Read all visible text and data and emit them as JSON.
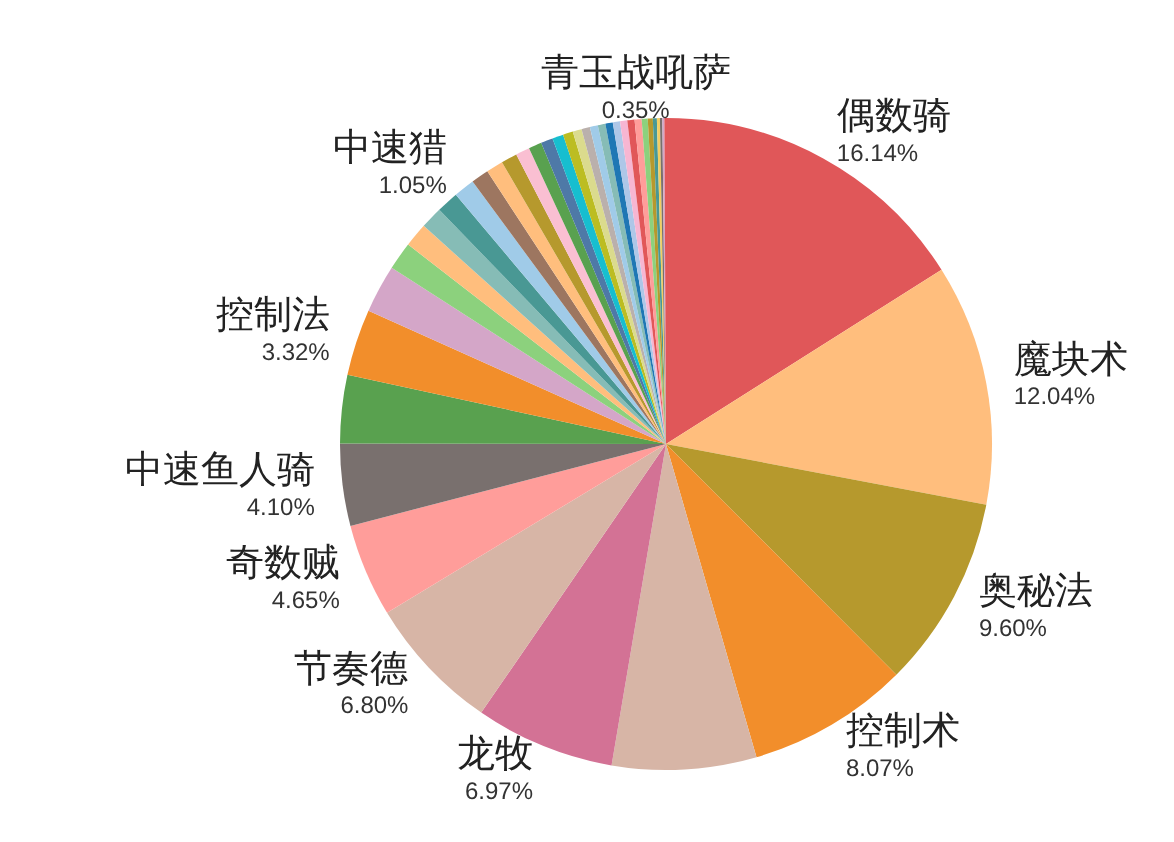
{
  "chart_data": {
    "type": "pie",
    "categories": [
      "偶数骑",
      "魔块术",
      "奥秘法",
      "控制术",
      null,
      "龙牧",
      "节奏德",
      "奇数贼",
      "中速鱼人骑",
      null,
      "控制法",
      null,
      null,
      null,
      null,
      null,
      "中速猎",
      null,
      null,
      null,
      null,
      null,
      null,
      null,
      null,
      null,
      null,
      null,
      null,
      null,
      null,
      null,
      null,
      "青玉战吼萨",
      null,
      null,
      null,
      null,
      null,
      null,
      null
    ],
    "values": [
      16.14,
      12.04,
      9.6,
      8.07,
      7.2,
      6.97,
      6.8,
      4.65,
      4.1,
      3.4,
      3.32,
      2.4,
      1.4,
      1.2,
      1.1,
      1.1,
      1.05,
      0.88,
      0.85,
      0.8,
      0.7,
      0.65,
      0.6,
      0.55,
      0.5,
      0.45,
      0.42,
      0.4,
      0.38,
      0.37,
      0.36,
      0.36,
      0.36,
      0.35,
      0.3,
      0.25,
      0.2,
      0.15,
      0.12,
      0.1,
      0.08
    ],
    "value_labels": [
      "16.14%",
      "12.04%",
      "9.60%",
      "8.07%",
      null,
      "6.97%",
      "6.80%",
      "4.65%",
      "4.10%",
      null,
      "3.32%",
      null,
      null,
      null,
      null,
      null,
      "1.05%",
      null,
      null,
      null,
      null,
      null,
      null,
      null,
      null,
      null,
      null,
      null,
      null,
      null,
      null,
      null,
      null,
      "0.35%",
      null,
      null,
      null,
      null,
      null,
      null,
      null
    ],
    "colors": [
      "#e05759",
      "#ffbe7d",
      "#b6992d",
      "#f28e2b",
      "#d7b5a6",
      "#d37295",
      "#d7b5a6",
      "#ff9d9a",
      "#79706e",
      "#59a14f",
      "#f28e2b",
      "#d4a6c8",
      "#8cd17d",
      "#ffbe7d",
      "#86bcb6",
      "#499894",
      "#a0cbe8",
      "#9d7660",
      "#ffbe7d",
      "#b6992d",
      "#fabfd2",
      "#59a14f",
      "#4e79a7",
      "#17becf",
      "#bcbd22",
      "#dbdb8d",
      "#bab0ac",
      "#a0cbe8",
      "#86bcb6",
      "#1f77b4",
      "#aec7e8",
      "#f7b6d2",
      "#e15759",
      "#ff9d9a",
      "#8cd17d",
      "#b6992d",
      "#499894",
      "#f1ce63",
      "#79706e",
      "#d4a6c8",
      "#e15759"
    ],
    "legend": false
  }
}
